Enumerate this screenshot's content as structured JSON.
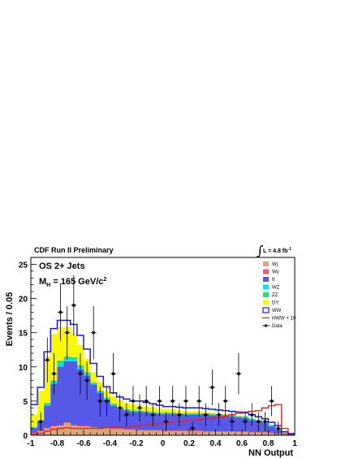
{
  "chart_data": {
    "type": "histogram",
    "title": "CDF Run II Preliminary",
    "luminosity_label": "L = 4.8 fb",
    "luminosity_sup": "-1",
    "integral_symbol": "∫",
    "annotation_line1": "OS 2+ Jets",
    "annotation_line2_main": "M",
    "annotation_line2_sub": "H",
    "annotation_line2_rest": " = 165 GeV/c",
    "annotation_line2_sup": "2",
    "xlabel": "NN Output",
    "ylabel": "Events / 0.05",
    "xlim": [
      -1,
      1
    ],
    "ylim": [
      0,
      26
    ],
    "xticks": [
      "-1",
      "-0.8",
      "-0.6",
      "-0.4",
      "-0.2",
      "0",
      "0.2",
      "0.4",
      "0.6",
      "0.8",
      "1"
    ],
    "yticks": [
      "0",
      "5",
      "10",
      "15",
      "20",
      "25"
    ],
    "bin_edges": [
      -1.0,
      -0.95,
      -0.9,
      -0.85,
      -0.8,
      -0.75,
      -0.7,
      -0.65,
      -0.6,
      -0.55,
      -0.5,
      -0.45,
      -0.4,
      -0.35,
      -0.3,
      -0.25,
      -0.2,
      -0.15,
      -0.1,
      -0.05,
      0.0,
      0.05,
      0.1,
      0.15,
      0.2,
      0.25,
      0.3,
      0.35,
      0.4,
      0.45,
      0.5,
      0.55,
      0.6,
      0.65,
      0.7,
      0.75,
      0.8,
      0.85,
      0.9,
      0.95,
      1.0
    ],
    "stack_cumulative_tops": {
      "Wj": [
        0.3,
        0.6,
        1.0,
        1.3,
        1.4,
        1.8,
        1.4,
        1.3,
        1.3,
        1.1,
        1.0,
        1.0,
        0.9,
        0.9,
        0.8,
        0.8,
        0.7,
        0.7,
        0.7,
        0.7,
        0.6,
        0.6,
        0.6,
        0.6,
        0.6,
        0.6,
        0.5,
        0.5,
        0.5,
        0.5,
        0.5,
        0.5,
        0.5,
        0.4,
        0.4,
        0.4,
        0.3,
        0.2,
        0.1,
        0.1
      ],
      "Wg": [
        0.4,
        0.7,
        1.1,
        1.4,
        1.5,
        1.9,
        1.5,
        1.4,
        1.4,
        1.2,
        1.1,
        1.1,
        1.0,
        1.0,
        0.9,
        0.9,
        0.8,
        0.8,
        0.8,
        0.8,
        0.7,
        0.7,
        0.7,
        0.7,
        0.7,
        0.7,
        0.6,
        0.6,
        0.6,
        0.6,
        0.6,
        0.6,
        0.6,
        0.5,
        0.5,
        0.5,
        0.4,
        0.3,
        0.2,
        0.1
      ],
      "ttbar": [
        1.0,
        2.0,
        4.3,
        7.5,
        10.0,
        10.8,
        10.8,
        9.6,
        8.7,
        7.4,
        6.2,
        5.2,
        4.3,
        3.8,
        3.6,
        3.4,
        3.4,
        3.3,
        3.2,
        3.1,
        3.1,
        3.1,
        3.0,
        3.0,
        3.0,
        3.0,
        3.0,
        2.9,
        2.8,
        2.8,
        2.7,
        2.6,
        2.5,
        2.2,
        2.0,
        1.8,
        1.3,
        0.8,
        0.3,
        0.1
      ],
      "WZ": [
        1.1,
        2.1,
        4.5,
        7.8,
        10.6,
        11.2,
        11.2,
        10.0,
        9.0,
        7.6,
        6.4,
        5.4,
        4.5,
        4.0,
        3.7,
        3.5,
        3.5,
        3.4,
        3.3,
        3.2,
        3.2,
        3.2,
        3.1,
        3.1,
        3.1,
        3.1,
        3.1,
        3.0,
        2.9,
        2.9,
        2.8,
        2.7,
        2.6,
        2.3,
        2.1,
        1.9,
        1.4,
        0.9,
        0.3,
        0.1
      ],
      "ZZ": [
        1.2,
        2.2,
        4.7,
        8.0,
        10.9,
        11.5,
        11.4,
        10.2,
        9.2,
        7.7,
        6.5,
        5.5,
        4.6,
        4.1,
        3.8,
        3.6,
        3.6,
        3.5,
        3.4,
        3.3,
        3.3,
        3.3,
        3.2,
        3.2,
        3.2,
        3.2,
        3.2,
        3.1,
        3.0,
        3.0,
        2.9,
        2.8,
        2.7,
        2.4,
        2.2,
        2.0,
        1.5,
        1.0,
        0.3,
        0.1
      ],
      "DY": [
        3.0,
        6.5,
        11.5,
        14.8,
        15.8,
        15.8,
        14.8,
        13.2,
        11.2,
        9.2,
        7.8,
        6.4,
        5.7,
        5.1,
        4.7,
        4.5,
        4.4,
        4.2,
        4.1,
        3.9,
        3.8,
        3.8,
        3.6,
        3.5,
        3.5,
        3.5,
        3.4,
        3.3,
        3.2,
        3.1,
        3.0,
        2.9,
        2.8,
        2.5,
        2.3,
        2.1,
        1.6,
        1.1,
        0.4,
        0.1
      ],
      "WW": [
        4.5,
        7.0,
        12.2,
        15.6,
        16.8,
        16.8,
        16.2,
        14.6,
        12.6,
        10.5,
        8.6,
        7.1,
        6.2,
        5.6,
        5.3,
        5.0,
        5.0,
        4.8,
        4.6,
        4.4,
        4.2,
        4.2,
        4.1,
        4.0,
        4.0,
        4.0,
        3.9,
        3.8,
        3.7,
        3.6,
        3.5,
        3.4,
        3.3,
        3.0,
        2.7,
        2.4,
        1.9,
        1.4,
        0.5,
        0.2
      ]
    },
    "hww_x10": [
      0.2,
      0.3,
      0.6,
      0.9,
      1.0,
      1.1,
      1.0,
      1.0,
      1.0,
      1.0,
      1.0,
      1.1,
      1.1,
      1.2,
      1.2,
      1.3,
      1.4,
      1.5,
      1.6,
      1.7,
      1.8,
      1.9,
      2.0,
      2.1,
      2.2,
      2.3,
      2.4,
      2.5,
      2.6,
      2.8,
      3.0,
      3.2,
      3.4,
      3.5,
      3.6,
      4.0,
      4.3,
      4.5,
      1.0,
      0.3
    ],
    "data_points": {
      "x": [
        -0.925,
        -0.875,
        -0.825,
        -0.775,
        -0.725,
        -0.675,
        -0.625,
        -0.575,
        -0.525,
        -0.475,
        -0.425,
        -0.375,
        -0.325,
        -0.275,
        -0.225,
        -0.175,
        -0.125,
        -0.075,
        -0.025,
        0.025,
        0.075,
        0.125,
        0.175,
        0.225,
        0.275,
        0.325,
        0.375,
        0.425,
        0.475,
        0.525,
        0.575,
        0.625,
        0.675,
        0.725,
        0.775,
        0.825,
        0.875
      ],
      "y": [
        2,
        11,
        9,
        18,
        15,
        19,
        9,
        8,
        15,
        5,
        5,
        9,
        4,
        3,
        5,
        4,
        5,
        3,
        5,
        2,
        5,
        3,
        5,
        1,
        5,
        3,
        7,
        3,
        5,
        2,
        9,
        2,
        3,
        2,
        2,
        5,
        1
      ],
      "yerr": [
        1.4,
        3.3,
        3.0,
        4.2,
        3.9,
        4.4,
        3.0,
        2.8,
        3.9,
        2.2,
        2.2,
        3.0,
        2.0,
        1.7,
        2.2,
        2.0,
        2.2,
        1.7,
        2.2,
        1.4,
        2.2,
        1.7,
        2.2,
        1.0,
        2.2,
        1.7,
        2.6,
        1.7,
        2.2,
        1.4,
        3.0,
        1.4,
        1.7,
        1.4,
        1.4,
        2.2,
        1.0
      ]
    },
    "legend": [
      {
        "key": "Wj",
        "label": "Wj",
        "color": "#d9a67a",
        "style": "fill"
      },
      {
        "key": "Wg",
        "label": "Wγ",
        "color": "#e0607a",
        "style": "fill"
      },
      {
        "key": "ttbar",
        "label": "tt̄",
        "color": "#5858e8",
        "style": "fill"
      },
      {
        "key": "WZ",
        "label": "WZ",
        "color": "#10e0e0",
        "style": "fill"
      },
      {
        "key": "ZZ",
        "label": "ZZ",
        "color": "#3cd070",
        "style": "fill"
      },
      {
        "key": "DY",
        "label": "DY",
        "color": "#f8f800",
        "style": "fill"
      },
      {
        "key": "WW",
        "label": "WW",
        "color": "#1a1ae0",
        "style": "outline"
      },
      {
        "key": "HWW",
        "label": "HWW × 10",
        "color": "#e82020",
        "style": "line"
      },
      {
        "key": "Data",
        "label": "Data",
        "color": "#000000",
        "style": "marker"
      }
    ],
    "legend_position": "top-right",
    "grid": false
  }
}
